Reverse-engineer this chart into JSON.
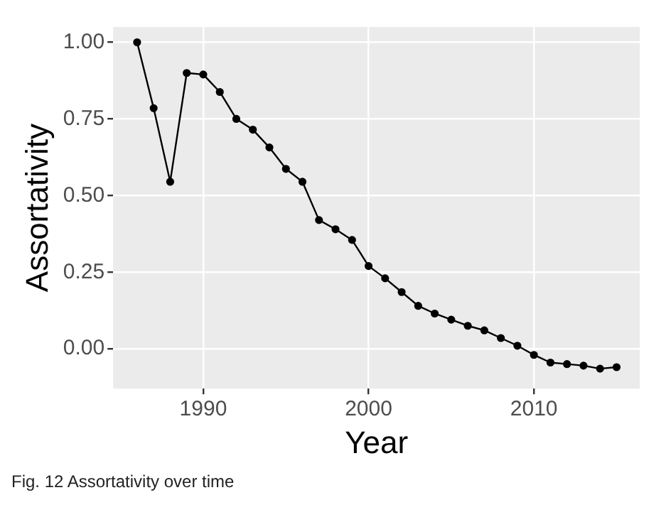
{
  "chart_data": {
    "type": "line",
    "xlabel": "Year",
    "ylabel": "Assortativity",
    "x": [
      1986,
      1987,
      1988,
      1989,
      1990,
      1991,
      1992,
      1993,
      1994,
      1995,
      1996,
      1997,
      1998,
      1999,
      2000,
      2001,
      2002,
      2003,
      2004,
      2005,
      2006,
      2007,
      2008,
      2009,
      2010,
      2011,
      2012,
      2013,
      2014,
      2015
    ],
    "series": [
      {
        "color": "#000000",
        "values": [
          1.0,
          0.785,
          0.545,
          0.9,
          0.895,
          0.838,
          0.75,
          0.715,
          0.657,
          0.587,
          0.545,
          0.42,
          0.39,
          0.355,
          0.27,
          0.23,
          0.185,
          0.14,
          0.115,
          0.095,
          0.075,
          0.06,
          0.035,
          0.01,
          -0.02,
          -0.045,
          -0.05,
          -0.055,
          -0.065,
          -0.06
        ]
      }
    ],
    "xlim": [
      1984.55,
      2016.4
    ],
    "xticks": [
      1990,
      2000,
      2010
    ],
    "ylim": [
      -0.13,
      1.05
    ],
    "yticks": [
      {
        "value": 0,
        "label": "0.00"
      },
      {
        "value": 0.25,
        "label": "0.25"
      },
      {
        "value": 0.5,
        "label": "0.50"
      },
      {
        "value": 0.75,
        "label": "0.75"
      },
      {
        "value": 1,
        "label": "1.00"
      }
    ],
    "grid": true,
    "legend": false,
    "marker": "circle",
    "line_style": "solid",
    "annotations": [
      "Fig. 12 Assortativity over time"
    ]
  }
}
